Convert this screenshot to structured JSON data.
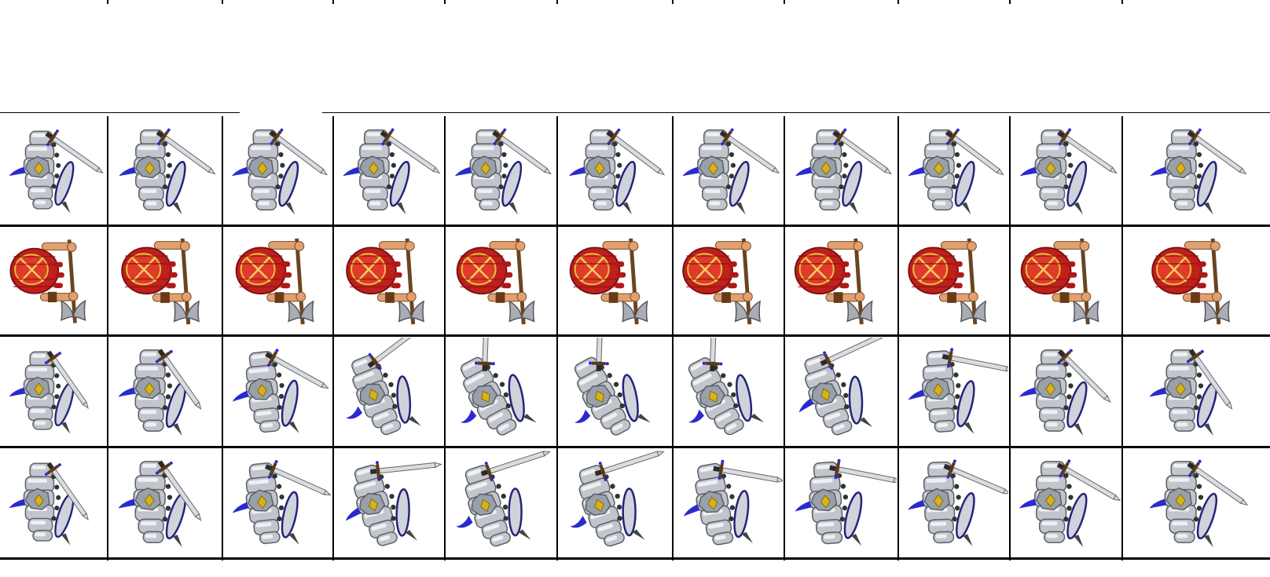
{
  "sprite_sheet": {
    "rows": [
      {
        "character": "armored-knight",
        "weapon": "sword",
        "pose": "idle",
        "frames": 11
      },
      {
        "character": "red-barbarian",
        "weapon": "battle-axe",
        "pose": "walk",
        "frames": 11
      },
      {
        "character": "armored-knight",
        "weapon": "sword",
        "pose": "attack-swing",
        "frames": 11
      },
      {
        "character": "armored-knight",
        "weapon": "sword",
        "pose": "attack-lunge",
        "frames": 11
      }
    ],
    "colors": {
      "steel": "#c2c6cc",
      "steel_dark": "#5a5f66",
      "cape_blue": "#2a2acf",
      "emblem_gold": "#d8b21a",
      "tunic_red": "#c0201c",
      "skin": "#e0a070",
      "handle_brown": "#6a4420",
      "shield_blue": "#23237a"
    }
  }
}
